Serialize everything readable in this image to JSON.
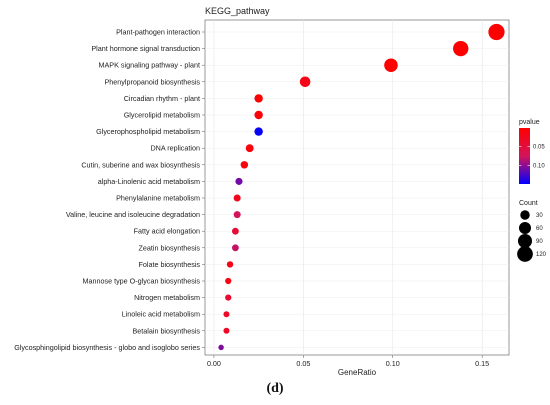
{
  "caption": "(d)",
  "chart_data": {
    "type": "scatter",
    "title": "KEGG_pathway",
    "xlabel": "GeneRatio",
    "ylabel": "",
    "xlim": [
      -0.005,
      0.165
    ],
    "x_ticks": [
      0.0,
      0.05,
      0.1,
      0.15
    ],
    "x_tick_labels": [
      "0.00",
      "0.05",
      "0.10",
      "0.15"
    ],
    "grid": true,
    "categories": [
      "Plant-pathogen interaction",
      "Plant hormone signal transduction",
      "MAPK signaling pathway - plant",
      "Phenylpropanoid biosynthesis",
      "Circadian rhythm - plant",
      "Glycerolipid metabolism",
      "Glycerophospholipid metabolism",
      "DNA replication",
      "Cutin, suberine and wax biosynthesis",
      "alpha-Linolenic acid metabolism",
      "Phenylalanine metabolism",
      "Valine, leucine and isoleucine degradation",
      "Fatty acid elongation",
      "Zeatin biosynthesis",
      "Folate biosynthesis",
      "Mannose type O-glycan biosynthesis",
      "Nitrogen metabolism",
      "Linoleic acid metabolism",
      "Betalain biosynthesis",
      "Glycosphingolipid biosynthesis - globo and isoglobo series"
    ],
    "gene_ratio": [
      0.158,
      0.138,
      0.099,
      0.051,
      0.025,
      0.025,
      0.025,
      0.02,
      0.017,
      0.014,
      0.013,
      0.013,
      0.012,
      0.012,
      0.009,
      0.008,
      0.008,
      0.007,
      0.007,
      0.004
    ],
    "count": [
      130,
      113,
      82,
      42,
      21,
      21,
      21,
      17,
      14,
      12,
      11,
      11,
      10,
      10,
      8,
      7,
      7,
      6,
      6,
      4
    ],
    "pvalue": [
      0.0,
      0.0,
      0.0,
      0.02,
      0.0,
      0.005,
      0.148,
      0.01,
      0.01,
      0.11,
      0.02,
      0.075,
      0.045,
      0.08,
      0.02,
      0.015,
      0.04,
      0.03,
      0.03,
      0.105
    ],
    "color_legend": {
      "title": "pvalue",
      "range": [
        0.0,
        0.15
      ],
      "ticks": [
        0.05,
        0.1
      ],
      "tick_labels": [
        "0.05",
        "0.10"
      ],
      "low_color": "#ff0000",
      "high_color": "#0000ff"
    },
    "size_legend": {
      "title": "Count",
      "values": [
        30,
        60,
        90,
        120
      ],
      "labels": [
        "30",
        "60",
        "90",
        "120"
      ]
    }
  }
}
